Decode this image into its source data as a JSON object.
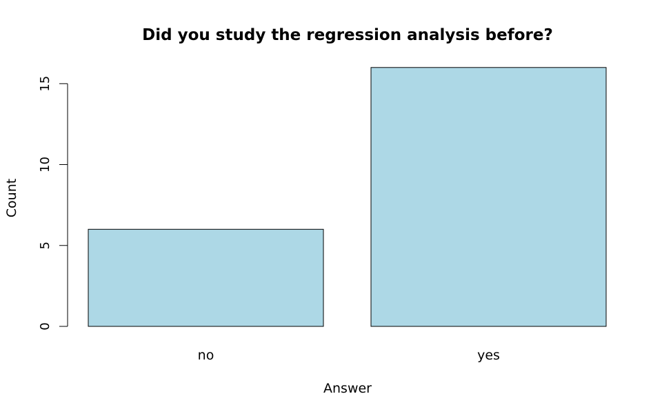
{
  "chart_data": {
    "type": "bar",
    "title": "Did you study the regression analysis before?",
    "xlabel": "Answer",
    "ylabel": "Count",
    "categories": [
      "no",
      "yes"
    ],
    "values": [
      6,
      16
    ],
    "ylim": [
      0,
      16
    ],
    "yticks": [
      0,
      5,
      10,
      15
    ],
    "bar_color": "#add8e6",
    "border_color": "#000000",
    "grid": false,
    "legend": "none"
  }
}
